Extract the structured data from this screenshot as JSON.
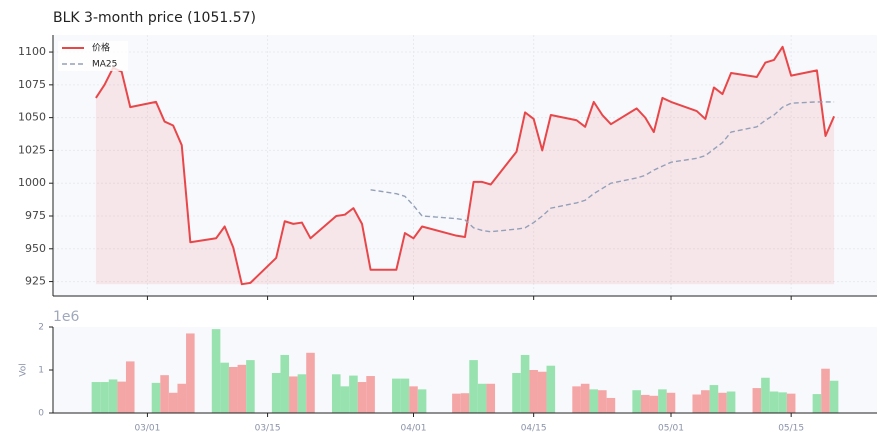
{
  "chart_data": {
    "type": "line",
    "title": "BLK  3-month price (1051.57)",
    "x": [
      "02/23",
      "02/24",
      "02/25",
      "02/26",
      "02/27",
      "03/02",
      "03/03",
      "03/04",
      "03/05",
      "03/06",
      "03/09",
      "03/10",
      "03/11",
      "03/12",
      "03/13",
      "03/16",
      "03/17",
      "03/18",
      "03/19",
      "03/20",
      "03/23",
      "03/24",
      "03/25",
      "03/26",
      "03/27",
      "03/30",
      "03/31",
      "04/01",
      "04/02",
      "04/06",
      "04/07",
      "04/08",
      "04/09",
      "04/10",
      "04/13",
      "04/14",
      "04/15",
      "04/16",
      "04/17",
      "04/20",
      "04/21",
      "04/22",
      "04/23",
      "04/24",
      "04/27",
      "04/28",
      "04/29",
      "04/30",
      "05/01",
      "05/04",
      "05/05",
      "05/06",
      "05/07",
      "05/08",
      "05/11",
      "05/12",
      "05/13",
      "05/14",
      "05/15",
      "05/18",
      "05/19",
      "05/20"
    ],
    "series": [
      {
        "name": "价格",
        "color": "#e8474a",
        "values": [
          1065,
          1075,
          1088,
          1085,
          1058,
          1062,
          1047,
          1044,
          1029,
          955,
          958,
          967,
          951,
          923,
          924,
          943,
          971,
          969,
          970,
          958,
          975,
          976,
          981,
          969,
          934,
          934,
          962,
          958,
          967,
          960,
          959,
          1001,
          1001,
          999,
          1024,
          1054,
          1049,
          1025,
          1052,
          1048,
          1043,
          1062,
          1052,
          1045,
          1057,
          1050,
          1039,
          1065,
          1062,
          1055,
          1049,
          1073,
          1068,
          1084,
          1081,
          1092,
          1094,
          1104,
          1082,
          1086,
          1036,
          1051
        ]
      },
      {
        "name": "MA25",
        "color": "#94a0b8",
        "values": [
          null,
          null,
          null,
          null,
          null,
          null,
          null,
          null,
          null,
          null,
          null,
          null,
          null,
          null,
          null,
          null,
          null,
          null,
          null,
          null,
          null,
          null,
          null,
          null,
          995,
          992,
          990,
          983,
          975,
          973,
          972,
          966,
          964,
          963,
          965,
          966,
          970,
          975,
          981,
          985,
          987,
          992,
          996,
          1000,
          1004,
          1006,
          1010,
          1013,
          1016,
          1019,
          1021,
          1026,
          1031,
          1039,
          1043,
          1048,
          1052,
          1058,
          1061,
          1062,
          1062,
          1062
        ]
      }
    ],
    "xlim": [
      "02/18",
      "05/25"
    ],
    "xticks": [
      "03/01",
      "03/15",
      "04/01",
      "04/15",
      "05/01",
      "05/15"
    ],
    "ylim": [
      914,
      1113
    ],
    "yticks": [
      925,
      950,
      975,
      1000,
      1025,
      1050,
      1075,
      1100
    ],
    "grid": true,
    "legend": "upper left",
    "volume": {
      "ylabel": "Vol",
      "offset": "1e6",
      "ylim": [
        0,
        2
      ],
      "yticks": [
        0,
        1,
        2
      ],
      "up_color": "#98e2b0",
      "down_color": "#f4a6a6",
      "values": [
        0.72,
        0.72,
        0.78,
        0.73,
        1.2,
        0.7,
        0.88,
        0.47,
        0.68,
        1.85,
        1.95,
        1.17,
        1.07,
        1.12,
        1.23,
        0.93,
        1.35,
        0.85,
        0.9,
        1.4,
        0.9,
        0.62,
        0.87,
        0.72,
        0.86,
        0.8,
        0.8,
        0.62,
        0.55,
        0.45,
        0.46,
        1.23,
        0.68,
        0.68,
        0.93,
        1.35,
        1.0,
        0.96,
        1.1,
        0.62,
        0.68,
        0.55,
        0.53,
        0.35,
        0.53,
        0.42,
        0.4,
        0.55,
        0.47,
        0.43,
        0.53,
        0.65,
        0.47,
        0.5,
        0.58,
        0.82,
        0.5,
        0.48,
        0.45,
        0.44,
        1.03,
        0.75
      ]
    }
  }
}
